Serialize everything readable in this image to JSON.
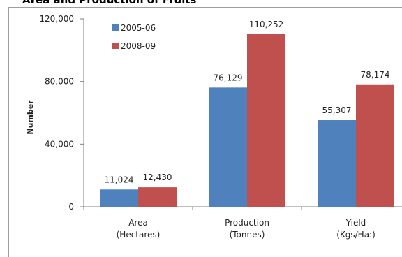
{
  "chart_data": {
    "type": "bar",
    "title": "Area and Production of Fruits",
    "ylabel": "Number",
    "xlabel": "",
    "ylim": [
      0,
      120000
    ],
    "yticks": [
      0,
      40000,
      80000,
      120000
    ],
    "ytick_labels": [
      "0",
      "40,000",
      "80,000",
      "120,000"
    ],
    "grid": false,
    "legend_position": "top-left",
    "categories": [
      [
        "Area",
        "(Hectares)"
      ],
      [
        "Production",
        "(Tonnes)"
      ],
      [
        "Yield",
        "(Kgs/Ha:)"
      ]
    ],
    "series": [
      {
        "name": "2005-06",
        "color": "#4f81bd",
        "values": [
          11024,
          76129,
          55307
        ],
        "labels": [
          "11,024",
          "76,129",
          "55,307"
        ]
      },
      {
        "name": "2008-09",
        "color": "#c0504d",
        "values": [
          12430,
          110252,
          78174
        ],
        "labels": [
          "12,430",
          "110,252",
          "78,174"
        ]
      }
    ]
  }
}
